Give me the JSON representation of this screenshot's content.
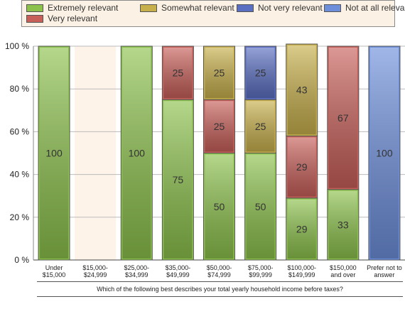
{
  "chart_data": {
    "type": "bar",
    "stacked": true,
    "categories": [
      [
        "Under",
        "$15,000"
      ],
      [
        "$15,000-",
        "$24,999"
      ],
      [
        "$25,000-",
        "$34,999"
      ],
      [
        "$35,000-",
        "$49,999"
      ],
      [
        "$50,000-",
        "$74,999"
      ],
      [
        "$75,000-",
        "$99,999"
      ],
      [
        "$100,000-",
        "$149,999"
      ],
      [
        "$150,000",
        "and over"
      ],
      [
        "Prefer not to",
        "answer"
      ]
    ],
    "series": [
      {
        "name": "Extremely relevant",
        "color": "#8cc14c",
        "values": [
          100,
          0,
          100,
          75,
          50,
          50,
          29,
          33,
          0
        ]
      },
      {
        "name": "Very relevant",
        "color": "#c8605a",
        "values": [
          0,
          0,
          0,
          25,
          25,
          0,
          29,
          67,
          0
        ]
      },
      {
        "name": "Somewhat relevant",
        "color": "#c7b04c",
        "values": [
          0,
          0,
          0,
          0,
          25,
          25,
          43,
          0,
          0
        ]
      },
      {
        "name": "Not very relevant",
        "color": "#5b6fc2",
        "values": [
          0,
          0,
          0,
          0,
          0,
          25,
          0,
          0,
          0
        ]
      },
      {
        "name": "Not at all relevant",
        "color": "#6d8fdb",
        "values": [
          0,
          0,
          0,
          0,
          0,
          0,
          0,
          0,
          100
        ]
      }
    ],
    "yticks": [
      "0 %",
      "20 %",
      "40 %",
      "60 %",
      "80 %",
      "100 %"
    ],
    "ylim": [
      0,
      100
    ],
    "xlabel": "Which of the following best describes your total yearly household income before taxes?",
    "legend_position": "top",
    "highlight_column": 1,
    "highlight_color": "#fdf3e8"
  }
}
